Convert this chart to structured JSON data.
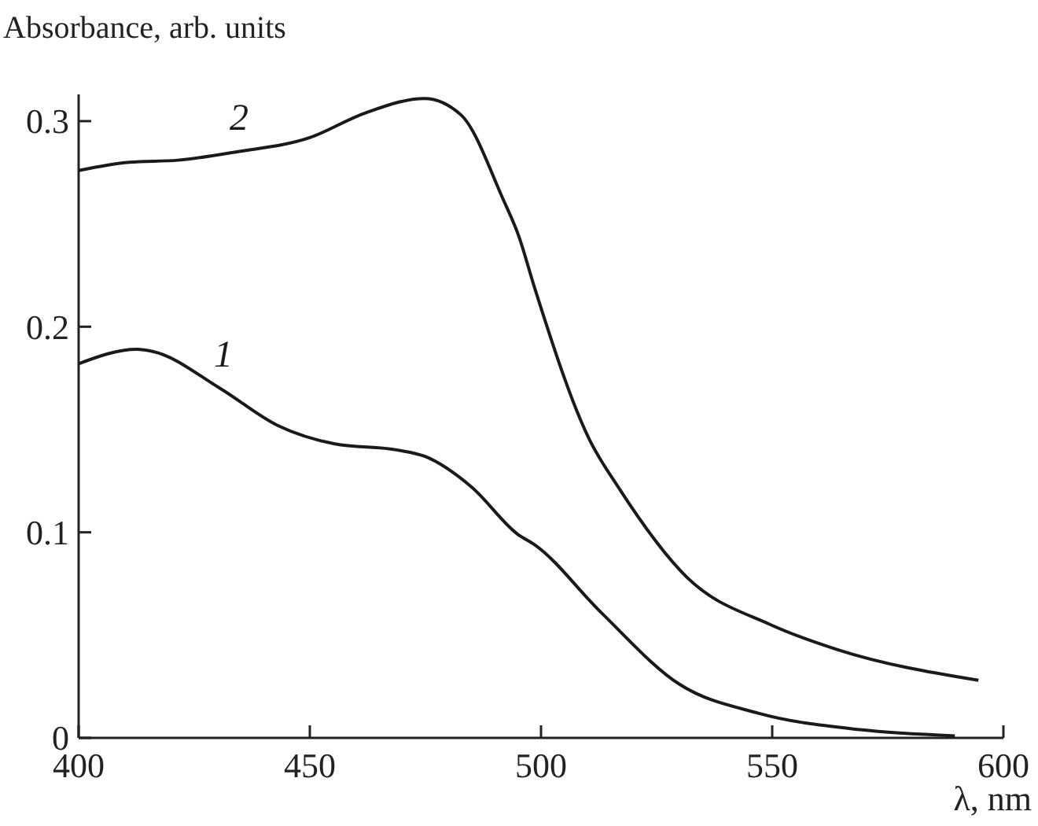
{
  "chart_data": {
    "type": "line",
    "xlabel": "λ, nm",
    "ylabel": "Absorbance, arb. units",
    "xlim": [
      400,
      600
    ],
    "ylim": [
      0,
      0.313
    ],
    "xticks": [
      400,
      450,
      500,
      550,
      600
    ],
    "yticks": [
      0,
      0.1,
      0.2,
      0.3
    ],
    "grid": false,
    "legend": false,
    "marker": "none",
    "line_style": "solid",
    "series": [
      {
        "name": "1",
        "color": "#1a1a1a",
        "x": [
          400,
          412.6,
          416,
          430.6,
          443,
          455.4,
          469,
          474.8,
          485,
          495,
          498.6,
          513,
          530,
          547,
          569,
          589.5
        ],
        "values": [
          0.182,
          0.189,
          0.188,
          0.17,
          0.152,
          0.143,
          0.14,
          0.137,
          0.122,
          0.099,
          0.094,
          0.061,
          0.026,
          0.012,
          0.004,
          0.001
        ]
      },
      {
        "name": "2",
        "color": "#1a1a1a",
        "x": [
          400,
          411,
          421.5,
          434,
          450,
          462,
          474.8,
          482.7,
          491.8,
          495.2,
          498.6,
          510.5,
          516.7,
          531.6,
          549.7,
          564,
          594.6
        ],
        "values": [
          0.276,
          0.28,
          0.281,
          0.285,
          0.292,
          0.304,
          0.311,
          0.303,
          0.262,
          0.244,
          0.219,
          0.145,
          0.122,
          0.078,
          0.055,
          0.043,
          0.028
        ]
      }
    ]
  }
}
